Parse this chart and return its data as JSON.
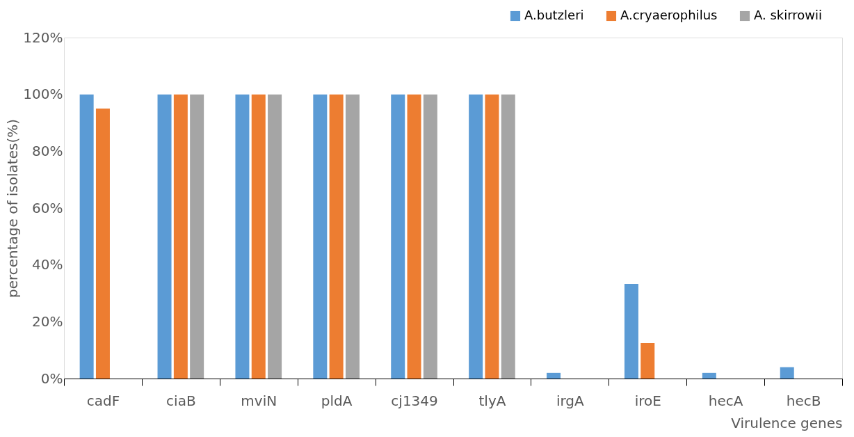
{
  "chart_data": {
    "type": "bar",
    "xlabel": "Virulence genes",
    "ylabel": "percentage of isolates(%)",
    "categories": [
      "cadF",
      "ciaB",
      "mviN",
      "pldA",
      "cj1349",
      "tlyA",
      "irgA",
      "iroE",
      "hecA",
      "hecB"
    ],
    "series": [
      {
        "name": "A.butzleri",
        "color": "#5b9bd5",
        "values": [
          100,
          100,
          100,
          100,
          100,
          100,
          2,
          33.3,
          2,
          4
        ]
      },
      {
        "name": "A.cryaerophilus",
        "color": "#ed7d31",
        "values": [
          95,
          100,
          100,
          100,
          100,
          100,
          0,
          12.5,
          0,
          0
        ]
      },
      {
        "name": "A. skirrowii",
        "color": "#a5a5a5",
        "values": [
          0,
          100,
          100,
          100,
          100,
          100,
          0,
          0,
          0,
          0
        ]
      }
    ],
    "ylim": [
      0,
      120
    ],
    "yticks": [
      {
        "value": 0,
        "label": "0%"
      },
      {
        "value": 20,
        "label": "20%"
      },
      {
        "value": 40,
        "label": "40%"
      },
      {
        "value": 60,
        "label": "60%"
      },
      {
        "value": 80,
        "label": "80%"
      },
      {
        "value": 100,
        "label": "100%"
      },
      {
        "value": 120,
        "label": "120%"
      }
    ],
    "grid": false,
    "legend": "top right"
  }
}
